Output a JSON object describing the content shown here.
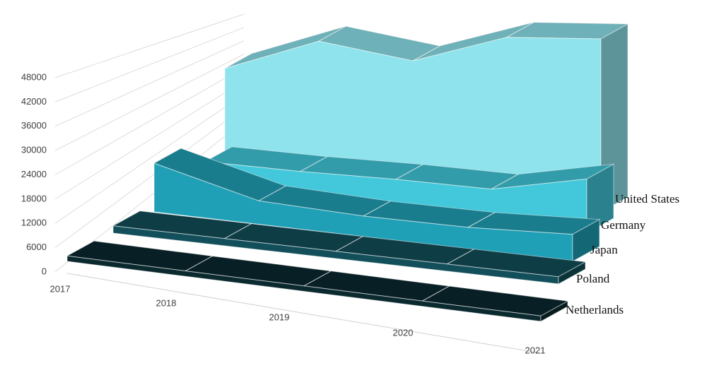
{
  "chart_data": {
    "type": "area3d",
    "categories": [
      "2017",
      "2018",
      "2019",
      "2020",
      "2021"
    ],
    "series": [
      {
        "name": "United States",
        "color": "#8ee3ec",
        "values": [
          30000,
          40000,
          37000,
          46000,
          48000
        ]
      },
      {
        "name": "Germany",
        "color": "#42c8da",
        "values": [
          11000,
          10500,
          10500,
          10000,
          15000
        ]
      },
      {
        "name": "Japan",
        "color": "#20a0b6",
        "values": [
          13500,
          6500,
          5700,
          6000,
          7500
        ]
      },
      {
        "name": "Poland",
        "color": "#124f5a",
        "values": [
          2000,
          2000,
          2000,
          2000,
          2000
        ]
      },
      {
        "name": "Netherlands",
        "color": "#0b2a30",
        "values": [
          1500,
          1500,
          1500,
          1500,
          1500
        ]
      }
    ],
    "ylim": [
      0,
      48000
    ],
    "yticks": [
      0,
      6000,
      12000,
      18000,
      24000,
      30000,
      36000,
      42000,
      48000
    ],
    "grid": true
  }
}
